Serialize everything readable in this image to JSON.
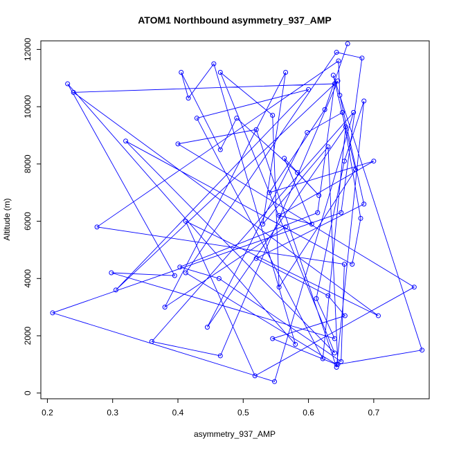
{
  "chart_data": {
    "type": "line",
    "title": "ATOM1 Northbound asymmetry_937_AMP",
    "xlabel": "asymmetry_937_AMP",
    "ylabel": "Altitude (m)",
    "xlim": [
      0.19,
      0.785
    ],
    "ylim": [
      -200,
      12300
    ],
    "xticks": [
      "0.2",
      "0.3",
      "0.4",
      "0.5",
      "0.6",
      "0.7"
    ],
    "yticks": [
      "0",
      "2000",
      "4000",
      "6000",
      "8000",
      "10000",
      "12000"
    ],
    "grid": false,
    "legend": "none",
    "color": "#0000ff",
    "series": [
      {
        "x": [
          0.66,
          0.625,
          0.54,
          0.7,
          0.555,
          0.605,
          0.563,
          0.616,
          0.583,
          0.49,
          0.465,
          0.405,
          0.416,
          0.455,
          0.58,
          0.231,
          0.395,
          0.298,
          0.64,
          0.612,
          0.655,
          0.685,
          0.643,
          0.52,
          0.4,
          0.762,
          0.518,
          0.412,
          0.707,
          0.24,
          0.64,
          0.614,
          0.403,
          0.463,
          0.65,
          0.655,
          0.276,
          0.646,
          0.648,
          0.685,
          0.52,
          0.63,
          0.656,
          0.545,
          0.643,
          0.412,
          0.643,
          0.682,
          0.65,
          0.208,
          0.548,
          0.669,
          0.36,
          0.465,
          0.645,
          0.305,
          0.6,
          0.429,
          0.622,
          0.657,
          0.445,
          0.598,
          0.652,
          0.68,
          0.667,
          0.32,
          0.64,
          0.465,
          0.545,
          0.555,
          0.672,
          0.638,
          0.774,
          0.645,
          0.63,
          0.53,
          0.565,
          0.38,
          0.565
        ],
        "y": [
          12200,
          9900,
          7000,
          8100,
          6200,
          5900,
          8200,
          6900,
          7700,
          9600,
          8500,
          11200,
          10300,
          11500,
          1700,
          10800,
          4100,
          4200,
          1900,
          3300,
          8100,
          10200,
          900,
          9200,
          8700,
          3700,
          600,
          6000,
          2700,
          10500,
          10800,
          6300,
          4400,
          4000,
          1100,
          4500,
          5800,
          11600,
          10400,
          6600,
          4700,
          3400,
          2700,
          1900,
          1000,
          4200,
          11900,
          11700,
          6300,
          2800,
          400,
          9800,
          1800,
          1300,
          10900,
          3600,
          10600,
          9600,
          1200,
          9300,
          2300,
          9100,
          9800,
          6100,
          4500,
          8800,
          1400,
          11200,
          9700,
          3700,
          7800,
          11100,
          1500,
          1000,
          8600,
          5900,
          11200,
          3000,
          5800
        ]
      }
    ]
  }
}
